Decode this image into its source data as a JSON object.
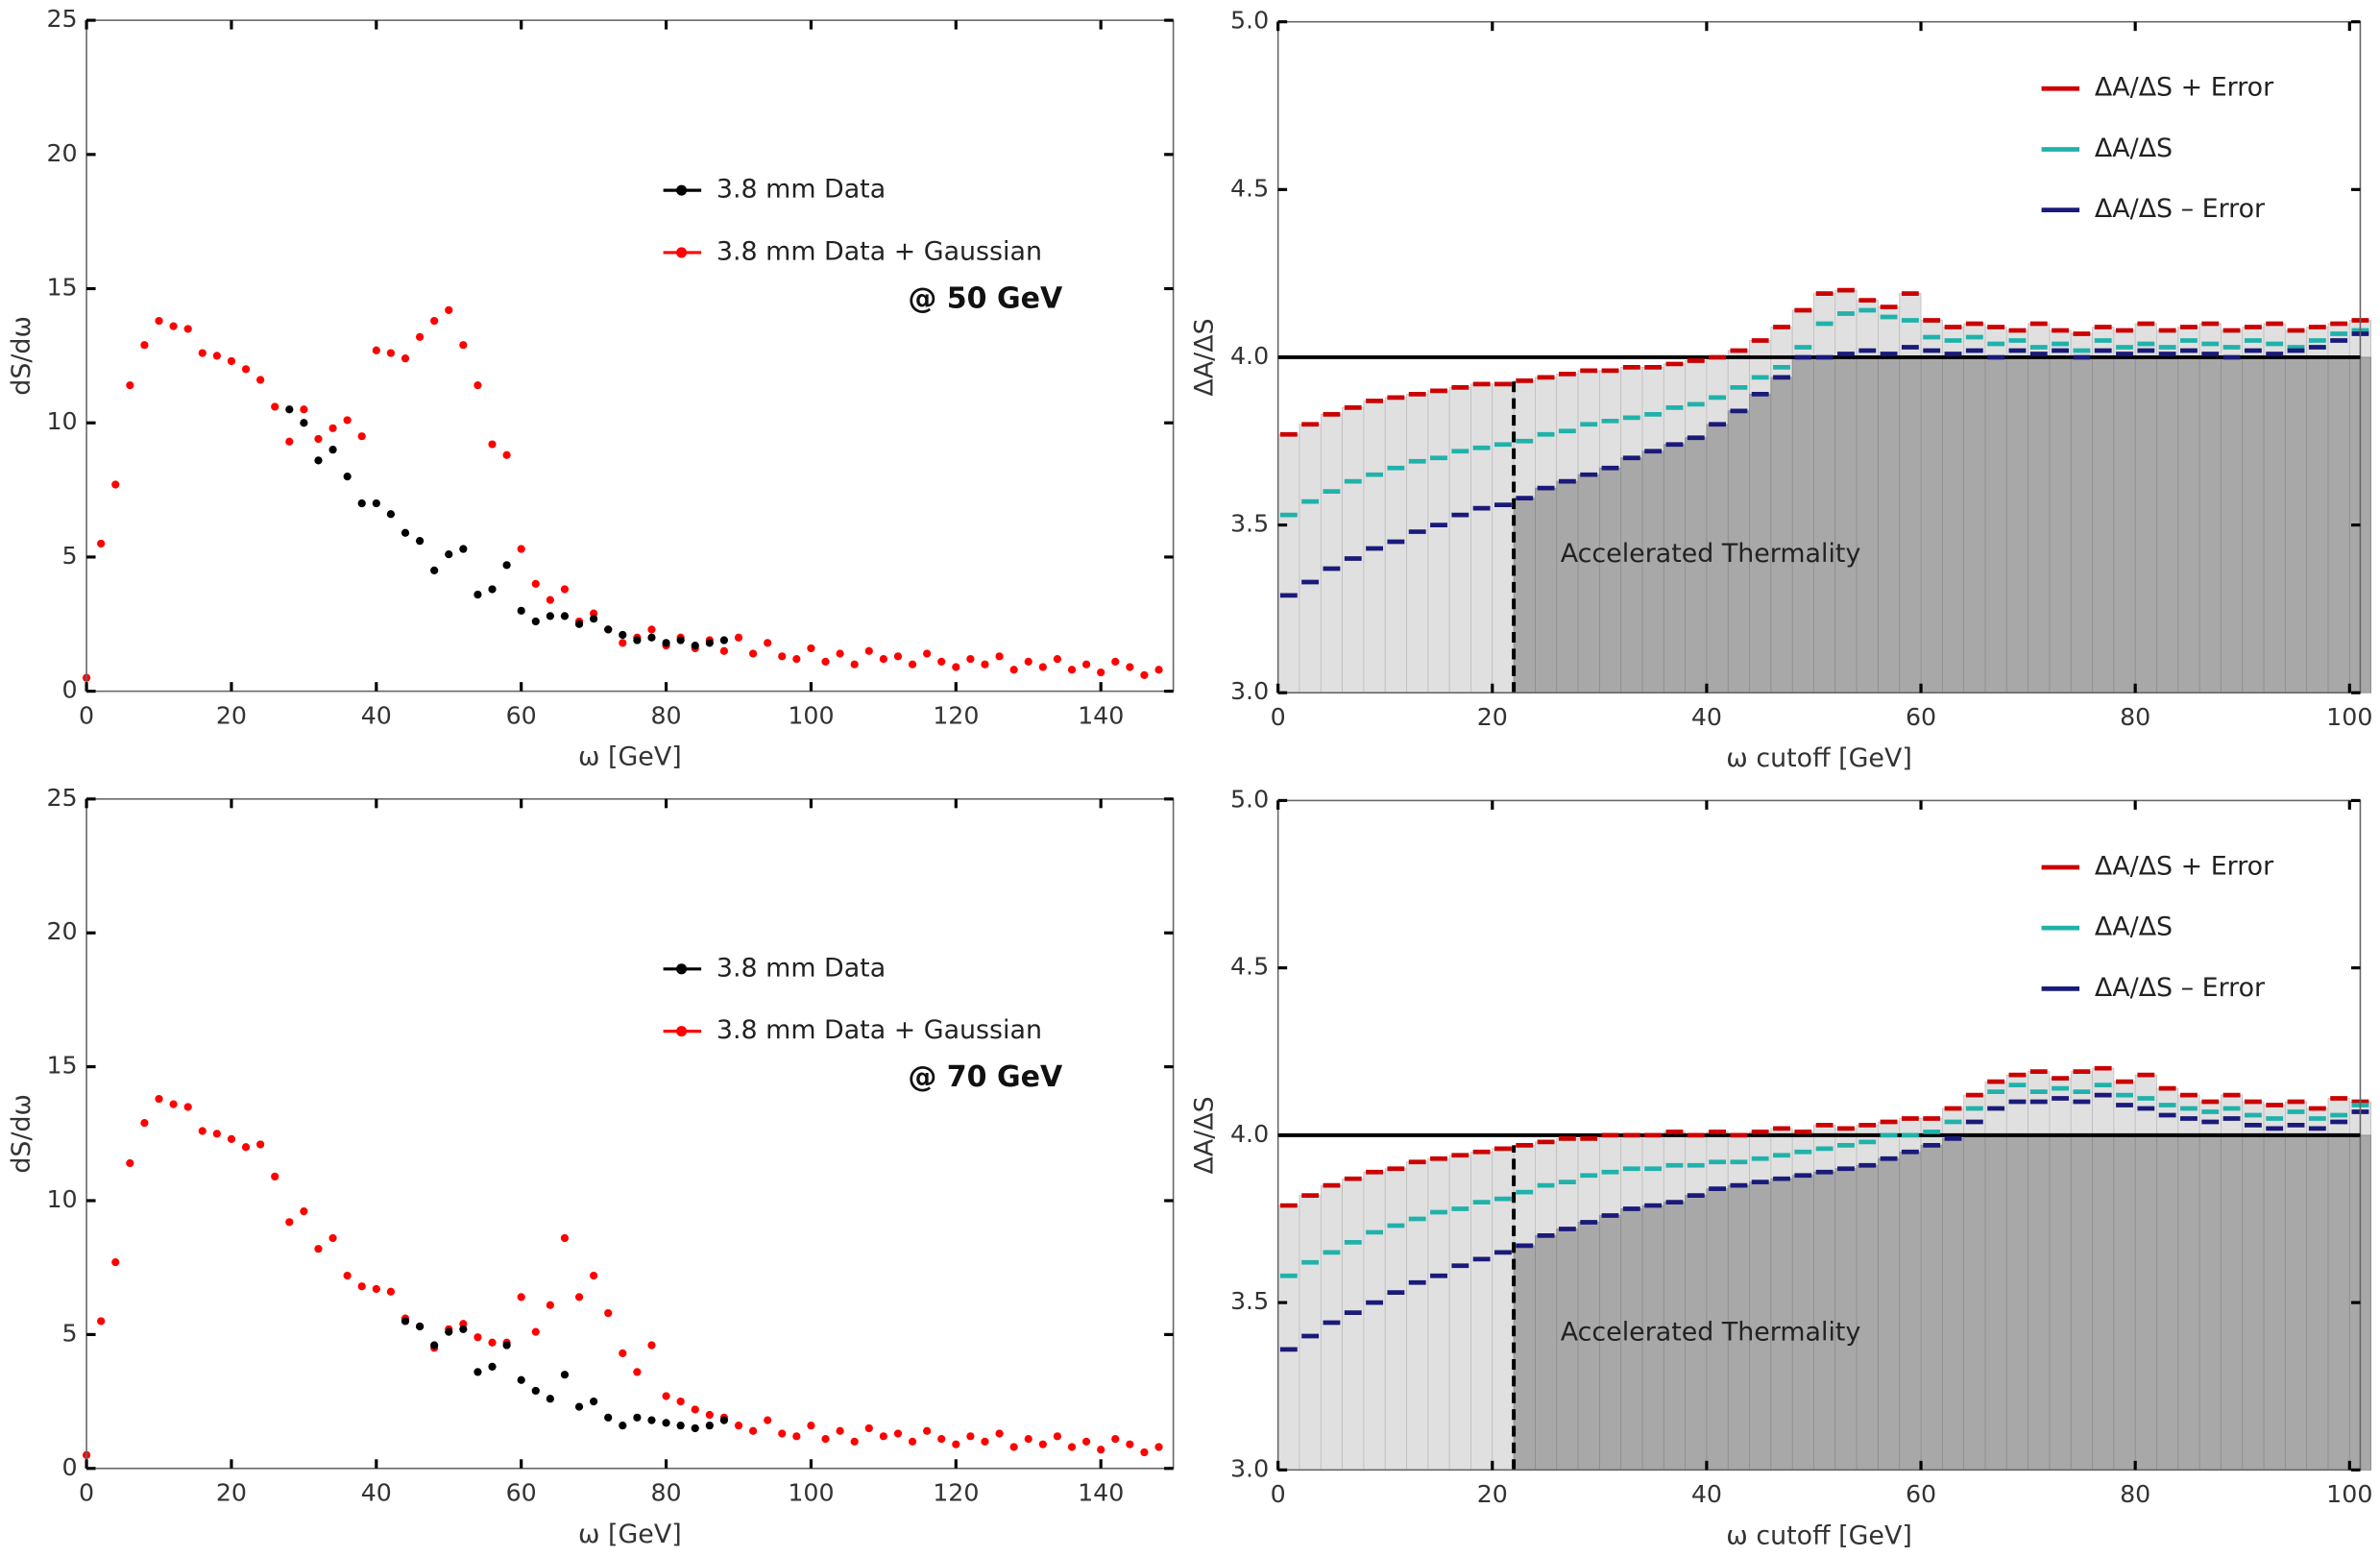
{
  "chart_data": [
    {
      "type": "scatter",
      "annotation": "@ 50 GeV",
      "x_label": "ω [GeV]",
      "y_label": "dS/dω",
      "xlim": [
        0,
        150
      ],
      "ylim": [
        0,
        25
      ],
      "xticks": [
        0,
        20,
        40,
        60,
        80,
        100,
        120,
        140
      ],
      "yticks": [
        0,
        5,
        10,
        15,
        20,
        25
      ],
      "x": [
        0,
        2,
        4,
        6,
        8,
        10,
        12,
        14,
        16,
        18,
        20,
        22,
        24,
        26,
        28,
        30,
        32,
        34,
        36,
        38,
        40,
        42,
        44,
        46,
        48,
        50,
        52,
        54,
        56,
        58,
        60,
        62,
        64,
        66,
        68,
        70,
        72,
        74,
        76,
        78,
        80,
        82,
        84,
        86,
        88,
        90,
        92,
        94,
        96,
        98,
        100,
        102,
        104,
        106,
        108,
        110,
        112,
        114,
        116,
        118,
        120,
        122,
        124,
        126,
        128,
        130,
        132,
        134,
        136,
        138,
        140,
        142,
        144,
        146,
        148
      ],
      "series": [
        {
          "name": "3.8 mm Data",
          "color": "#000000",
          "values": [
            null,
            null,
            null,
            null,
            null,
            null,
            null,
            null,
            null,
            null,
            null,
            null,
            null,
            null,
            10.5,
            10.0,
            8.6,
            9.0,
            8.0,
            7.0,
            7.0,
            6.6,
            5.9,
            5.6,
            4.5,
            5.1,
            5.3,
            3.6,
            3.8,
            4.7,
            3.0,
            2.6,
            2.8,
            2.8,
            2.5,
            2.7,
            2.3,
            2.1,
            1.9,
            2.0,
            1.8,
            1.9,
            1.7,
            1.8,
            1.9,
            null,
            null,
            null,
            null,
            null,
            null,
            null,
            null,
            null,
            null,
            null,
            null,
            null,
            null,
            null,
            null,
            null,
            null,
            null,
            null,
            null,
            null,
            null,
            null,
            null,
            null,
            null,
            null,
            null,
            null
          ]
        },
        {
          "name": "3.8 mm Data + Gaussian",
          "color": "#ff0000",
          "values": [
            0.5,
            5.5,
            7.7,
            11.4,
            12.9,
            13.8,
            13.6,
            13.5,
            12.6,
            12.5,
            12.3,
            12.0,
            11.6,
            10.6,
            9.3,
            10.5,
            9.4,
            9.8,
            10.1,
            9.5,
            12.7,
            12.6,
            12.4,
            13.2,
            13.8,
            14.2,
            12.9,
            11.4,
            9.2,
            8.8,
            5.3,
            4.0,
            3.4,
            3.8,
            2.6,
            2.9,
            2.3,
            1.8,
            2.0,
            2.3,
            1.7,
            2.0,
            1.6,
            1.9,
            1.5,
            2.0,
            1.4,
            1.8,
            1.3,
            1.2,
            1.6,
            1.1,
            1.4,
            1.0,
            1.5,
            1.2,
            1.3,
            1.0,
            1.4,
            1.1,
            0.9,
            1.2,
            1.0,
            1.3,
            0.8,
            1.1,
            0.9,
            1.2,
            0.8,
            1.0,
            0.7,
            1.1,
            0.9,
            0.6,
            0.8
          ]
        }
      ]
    },
    {
      "type": "step",
      "annotation": "Accelerated Thermality",
      "x_label": "ω cutoff [GeV]",
      "y_label": "ΔA/ΔS",
      "xlim": [
        0,
        101
      ],
      "ylim": [
        3,
        5
      ],
      "xticks": [
        0,
        20,
        40,
        60,
        80,
        100
      ],
      "yticks": [
        {
          "value": 3,
          "label": "3.0"
        },
        3.5,
        {
          "value": 4,
          "label": "4.0"
        },
        4.5,
        {
          "value": 5,
          "label": "5.0"
        }
      ],
      "reference_line": 4.0,
      "cutoff_line": 22,
      "x": [
        0,
        2,
        4,
        6,
        8,
        10,
        12,
        14,
        16,
        18,
        20,
        22,
        24,
        26,
        28,
        30,
        32,
        34,
        36,
        38,
        40,
        42,
        44,
        46,
        48,
        50,
        52,
        54,
        56,
        58,
        60,
        62,
        64,
        66,
        68,
        70,
        72,
        74,
        76,
        78,
        80,
        82,
        84,
        86,
        88,
        90,
        92,
        94,
        96,
        98,
        100
      ],
      "series": [
        {
          "name": "ΔA/ΔS + Error",
          "color": "#cc0000",
          "values": [
            3.77,
            3.8,
            3.83,
            3.85,
            3.87,
            3.88,
            3.89,
            3.9,
            3.91,
            3.92,
            3.92,
            3.93,
            3.94,
            3.95,
            3.96,
            3.96,
            3.97,
            3.97,
            3.98,
            3.99,
            4.0,
            4.02,
            4.05,
            4.09,
            4.14,
            4.19,
            4.2,
            4.17,
            4.15,
            4.19,
            4.11,
            4.09,
            4.1,
            4.09,
            4.08,
            4.1,
            4.08,
            4.07,
            4.09,
            4.08,
            4.1,
            4.08,
            4.09,
            4.1,
            4.08,
            4.09,
            4.1,
            4.08,
            4.09,
            4.1,
            4.11
          ]
        },
        {
          "name": "ΔA/ΔS",
          "color": "#20b2aa",
          "values": [
            3.53,
            3.57,
            3.6,
            3.63,
            3.65,
            3.67,
            3.69,
            3.7,
            3.72,
            3.73,
            3.74,
            3.75,
            3.77,
            3.78,
            3.8,
            3.81,
            3.82,
            3.83,
            3.85,
            3.86,
            3.88,
            3.91,
            3.94,
            3.97,
            4.03,
            4.1,
            4.13,
            4.14,
            4.12,
            4.11,
            4.06,
            4.05,
            4.06,
            4.04,
            4.05,
            4.03,
            4.04,
            4.02,
            4.05,
            4.03,
            4.04,
            4.03,
            4.05,
            4.04,
            4.03,
            4.05,
            4.04,
            4.03,
            4.05,
            4.07,
            4.08
          ]
        },
        {
          "name": "ΔA/ΔS – Error",
          "color": "#1a1a7a",
          "values": [
            3.29,
            3.33,
            3.37,
            3.4,
            3.43,
            3.45,
            3.48,
            3.5,
            3.53,
            3.55,
            3.56,
            3.58,
            3.61,
            3.63,
            3.65,
            3.67,
            3.7,
            3.72,
            3.74,
            3.76,
            3.8,
            3.84,
            3.89,
            3.94,
            4.0,
            4.0,
            4.01,
            4.02,
            4.01,
            4.03,
            4.02,
            4.01,
            4.02,
            4.0,
            4.02,
            4.01,
            4.02,
            4.0,
            4.02,
            4.01,
            4.02,
            4.01,
            4.02,
            4.01,
            4.0,
            4.02,
            4.01,
            4.02,
            4.03,
            4.05,
            4.07
          ]
        }
      ]
    },
    {
      "type": "scatter",
      "annotation": "@ 70 GeV",
      "x_label": "ω [GeV]",
      "y_label": "dS/dω",
      "xlim": [
        0,
        150
      ],
      "ylim": [
        0,
        25
      ],
      "xticks": [
        0,
        20,
        40,
        60,
        80,
        100,
        120,
        140
      ],
      "yticks": [
        0,
        5,
        10,
        15,
        20,
        25
      ],
      "x": [
        0,
        2,
        4,
        6,
        8,
        10,
        12,
        14,
        16,
        18,
        20,
        22,
        24,
        26,
        28,
        30,
        32,
        34,
        36,
        38,
        40,
        42,
        44,
        46,
        48,
        50,
        52,
        54,
        56,
        58,
        60,
        62,
        64,
        66,
        68,
        70,
        72,
        74,
        76,
        78,
        80,
        82,
        84,
        86,
        88,
        90,
        92,
        94,
        96,
        98,
        100,
        102,
        104,
        106,
        108,
        110,
        112,
        114,
        116,
        118,
        120,
        122,
        124,
        126,
        128,
        130,
        132,
        134,
        136,
        138,
        140,
        142,
        144,
        146,
        148
      ],
      "series": [
        {
          "name": "3.8 mm Data",
          "color": "#000000",
          "values": [
            null,
            null,
            null,
            null,
            null,
            null,
            null,
            null,
            null,
            null,
            null,
            null,
            null,
            null,
            null,
            null,
            null,
            null,
            null,
            null,
            null,
            null,
            5.5,
            5.3,
            4.6,
            5.1,
            5.2,
            3.6,
            3.8,
            4.6,
            3.3,
            2.9,
            2.6,
            3.5,
            2.3,
            2.5,
            1.9,
            1.6,
            1.9,
            1.8,
            1.7,
            1.6,
            1.5,
            1.6,
            1.8,
            null,
            null,
            null,
            null,
            null,
            null,
            null,
            null,
            null,
            null,
            null,
            null,
            null,
            null,
            null,
            null,
            null,
            null,
            null,
            null,
            null,
            null,
            null,
            null,
            null,
            null,
            null,
            null,
            null,
            null
          ]
        },
        {
          "name": "3.8 mm Data + Gaussian",
          "color": "#ff0000",
          "values": [
            0.5,
            5.5,
            7.7,
            11.4,
            12.9,
            13.8,
            13.6,
            13.5,
            12.6,
            12.5,
            12.3,
            12.0,
            12.1,
            10.9,
            9.2,
            9.6,
            8.2,
            8.6,
            7.2,
            6.8,
            6.7,
            6.6,
            5.6,
            5.3,
            4.5,
            5.2,
            5.4,
            4.9,
            4.7,
            4.7,
            6.4,
            5.1,
            6.1,
            8.6,
            6.4,
            7.2,
            5.8,
            4.3,
            3.6,
            4.6,
            2.7,
            2.5,
            2.2,
            2.0,
            1.9,
            1.6,
            1.4,
            1.8,
            1.3,
            1.2,
            1.6,
            1.1,
            1.4,
            1.0,
            1.5,
            1.2,
            1.3,
            1.0,
            1.4,
            1.1,
            0.9,
            1.2,
            1.0,
            1.3,
            0.8,
            1.1,
            0.9,
            1.2,
            0.8,
            1.0,
            0.7,
            1.1,
            0.9,
            0.6,
            0.8
          ]
        }
      ]
    },
    {
      "type": "step",
      "annotation": "Accelerated Thermality",
      "x_label": "ω cutoff [GeV]",
      "y_label": "ΔA/ΔS",
      "xlim": [
        0,
        101
      ],
      "ylim": [
        3,
        5
      ],
      "xticks": [
        0,
        20,
        40,
        60,
        80,
        100
      ],
      "yticks": [
        {
          "value": 3,
          "label": "3.0"
        },
        3.5,
        {
          "value": 4,
          "label": "4.0"
        },
        4.5,
        {
          "value": 5,
          "label": "5.0"
        }
      ],
      "reference_line": 4.0,
      "cutoff_line": 22,
      "x": [
        0,
        2,
        4,
        6,
        8,
        10,
        12,
        14,
        16,
        18,
        20,
        22,
        24,
        26,
        28,
        30,
        32,
        34,
        36,
        38,
        40,
        42,
        44,
        46,
        48,
        50,
        52,
        54,
        56,
        58,
        60,
        62,
        64,
        66,
        68,
        70,
        72,
        74,
        76,
        78,
        80,
        82,
        84,
        86,
        88,
        90,
        92,
        94,
        96,
        98,
        100
      ],
      "series": [
        {
          "name": "ΔA/ΔS + Error",
          "color": "#cc0000",
          "values": [
            3.79,
            3.82,
            3.85,
            3.87,
            3.89,
            3.9,
            3.92,
            3.93,
            3.94,
            3.95,
            3.96,
            3.97,
            3.98,
            3.99,
            3.99,
            4.0,
            4.0,
            4.0,
            4.01,
            4.0,
            4.01,
            4.0,
            4.01,
            4.02,
            4.01,
            4.03,
            4.02,
            4.03,
            4.04,
            4.05,
            4.05,
            4.08,
            4.12,
            4.16,
            4.18,
            4.19,
            4.17,
            4.19,
            4.2,
            4.16,
            4.18,
            4.14,
            4.12,
            4.1,
            4.12,
            4.1,
            4.09,
            4.1,
            4.08,
            4.11,
            4.1
          ]
        },
        {
          "name": "ΔA/ΔS",
          "color": "#20b2aa",
          "values": [
            3.58,
            3.62,
            3.65,
            3.68,
            3.71,
            3.73,
            3.75,
            3.77,
            3.78,
            3.8,
            3.81,
            3.83,
            3.85,
            3.86,
            3.88,
            3.89,
            3.9,
            3.9,
            3.91,
            3.91,
            3.92,
            3.92,
            3.93,
            3.94,
            3.95,
            3.96,
            3.97,
            3.98,
            4.0,
            4.0,
            4.01,
            4.04,
            4.08,
            4.13,
            4.15,
            4.13,
            4.14,
            4.13,
            4.15,
            4.12,
            4.11,
            4.09,
            4.08,
            4.07,
            4.08,
            4.06,
            4.05,
            4.07,
            4.05,
            4.06,
            4.09
          ]
        },
        {
          "name": "ΔA/ΔS – Error",
          "color": "#1a1a7a",
          "values": [
            3.36,
            3.4,
            3.44,
            3.47,
            3.5,
            3.53,
            3.56,
            3.58,
            3.61,
            3.63,
            3.65,
            3.67,
            3.7,
            3.72,
            3.74,
            3.76,
            3.78,
            3.79,
            3.8,
            3.82,
            3.84,
            3.85,
            3.86,
            3.87,
            3.88,
            3.89,
            3.9,
            3.91,
            3.93,
            3.95,
            3.97,
            3.99,
            4.04,
            4.08,
            4.1,
            4.1,
            4.11,
            4.1,
            4.12,
            4.09,
            4.08,
            4.06,
            4.05,
            4.04,
            4.05,
            4.03,
            4.02,
            4.03,
            4.02,
            4.04,
            4.07
          ]
        }
      ]
    }
  ]
}
